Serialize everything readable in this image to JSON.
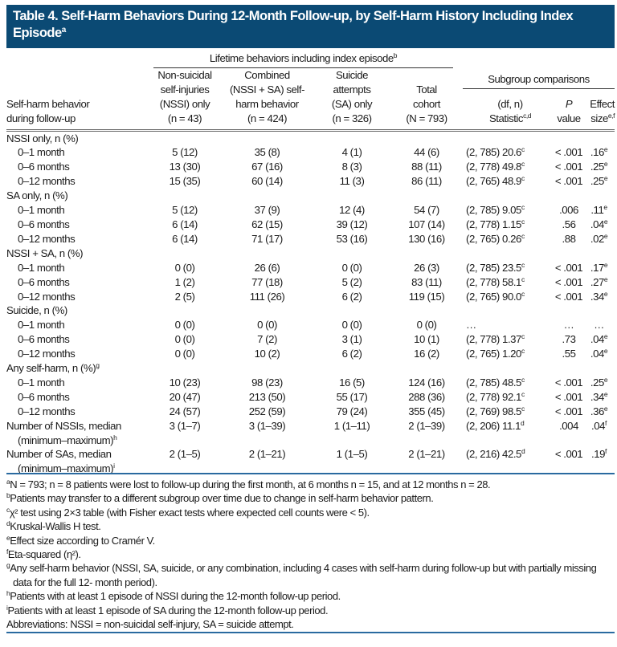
{
  "title": {
    "text": "Table 4. Self-Harm Behaviors During 12-Month Follow-up, by Self-Harm History Including Index Episode",
    "sup": "a"
  },
  "header": {
    "span_label": "Lifetime behaviors including index episode",
    "span_sup": "b",
    "subgroup_label": "Subgroup comparisons",
    "row_label_1": "Self-harm behavior",
    "row_label_2": "during follow-up",
    "col1": [
      "Non-suicidal",
      "self-injuries",
      "(NSSI) only",
      "(n = 43)"
    ],
    "col2": [
      "Combined",
      "(NSSI + SA) self-",
      "harm behavior",
      "(n = 424)"
    ],
    "col3": [
      "Suicide",
      "attempts",
      "(SA) only",
      "(n = 326)"
    ],
    "col4": [
      "Total",
      "cohort",
      "(N = 793)"
    ],
    "stat_1": "(df, n)",
    "stat_2": "Statistic",
    "stat_sup": "c,d",
    "p_1": "P",
    "p_2": "value",
    "eff_1": "Effect",
    "eff_2": "size",
    "eff_sup": "e,f"
  },
  "groups": [
    {
      "label": "NSSI only, n (%)",
      "sup": "",
      "rows": [
        {
          "label": "0–1 month",
          "v": [
            "5 (12)",
            "35 (8)",
            "4 (1)",
            "44 (6)"
          ],
          "stat": "(2, 785) 20.6",
          "ss": "c",
          "p": "< .001",
          "eff": ".16",
          "es": "e"
        },
        {
          "label": "0–6 months",
          "v": [
            "13 (30)",
            "67 (16)",
            "8 (3)",
            "88 (11)"
          ],
          "stat": "(2, 778) 49.8",
          "ss": "c",
          "p": "< .001",
          "eff": ".25",
          "es": "e"
        },
        {
          "label": "0–12 months",
          "v": [
            "15 (35)",
            "60 (14)",
            "11 (3)",
            "86 (11)"
          ],
          "stat": "(2, 765) 48.9",
          "ss": "c",
          "p": "< .001",
          "eff": ".25",
          "es": "e"
        }
      ]
    },
    {
      "label": "SA only, n (%)",
      "sup": "",
      "rows": [
        {
          "label": "0–1 month",
          "v": [
            "5 (12)",
            "37 (9)",
            "12 (4)",
            "54 (7)"
          ],
          "stat": "(2, 785) 9.05",
          "ss": "c",
          "p": ".006",
          "eff": ".11",
          "es": "e"
        },
        {
          "label": "0–6 months",
          "v": [
            "6 (14)",
            "62 (15)",
            "39 (12)",
            "107 (14)"
          ],
          "stat": "(2, 778) 1.15",
          "ss": "c",
          "p": ".56",
          "eff": ".04",
          "es": "e"
        },
        {
          "label": "0–12 months",
          "v": [
            "6 (14)",
            "71 (17)",
            "53 (16)",
            "130 (16)"
          ],
          "stat": "(2, 765) 0.26",
          "ss": "c",
          "p": ".88",
          "eff": ".02",
          "es": "e"
        }
      ]
    },
    {
      "label": "NSSI + SA, n (%)",
      "sup": "",
      "rows": [
        {
          "label": "0–1 month",
          "v": [
            "0 (0)",
            "26 (6)",
            "0 (0)",
            "26 (3)"
          ],
          "stat": "(2, 785) 23.5",
          "ss": "c",
          "p": "< .001",
          "eff": ".17",
          "es": "e"
        },
        {
          "label": "0–6 months",
          "v": [
            "1 (2)",
            "77 (18)",
            "5 (2)",
            "83 (11)"
          ],
          "stat": "(2, 778) 58.1",
          "ss": "c",
          "p": "< .001",
          "eff": ".27",
          "es": "e"
        },
        {
          "label": "0–12 months",
          "v": [
            "2 (5)",
            "111 (26)",
            "6 (2)",
            "119 (15)"
          ],
          "stat": "(2, 765) 90.0",
          "ss": "c",
          "p": "< .001",
          "eff": ".34",
          "es": "e"
        }
      ]
    },
    {
      "label": "Suicide, n (%)",
      "sup": "",
      "rows": [
        {
          "label": "0–1 month",
          "v": [
            "0 (0)",
            "0 (0)",
            "0 (0)",
            "0 (0)"
          ],
          "stat": "…",
          "ss": "",
          "p": "…",
          "eff": "…",
          "es": ""
        },
        {
          "label": "0–6 months",
          "v": [
            "0 (0)",
            "7 (2)",
            "3 (1)",
            "10 (1)"
          ],
          "stat": "(2, 778) 1.37",
          "ss": "c",
          "p": ".73",
          "eff": ".04",
          "es": "e"
        },
        {
          "label": "0–12 months",
          "v": [
            "0 (0)",
            "10 (2)",
            "6 (2)",
            "16 (2)"
          ],
          "stat": "(2, 765) 1.20",
          "ss": "c",
          "p": ".55",
          "eff": ".04",
          "es": "e"
        }
      ]
    },
    {
      "label": "Any self-harm, n (%)",
      "sup": "g",
      "rows": [
        {
          "label": "0–1 month",
          "v": [
            "10 (23)",
            "98 (23)",
            "16 (5)",
            "124 (16)"
          ],
          "stat": "(2, 785) 48.5",
          "ss": "c",
          "p": "< .001",
          "eff": ".25",
          "es": "e"
        },
        {
          "label": "0–6 months",
          "v": [
            "20 (47)",
            "213 (50)",
            "55 (17)",
            "288 (36)"
          ],
          "stat": "(2, 778) 92.1",
          "ss": "c",
          "p": "< .001",
          "eff": ".34",
          "es": "e"
        },
        {
          "label": "0–12 months",
          "v": [
            "24 (57)",
            "252 (59)",
            "79 (24)",
            "355 (45)"
          ],
          "stat": "(2, 769) 98.5",
          "ss": "c",
          "p": "< .001",
          "eff": ".36",
          "es": "e"
        }
      ]
    }
  ],
  "summary_rows": [
    {
      "label": "Number of NSSIs, median",
      "label2": "(minimum–maximum)",
      "sup": "h",
      "v": [
        "3 (1–7)",
        "3 (1–39)",
        "1 (1–11)",
        "2 (1–39)"
      ],
      "stat": "(2, 206) 11.1",
      "ss": "d",
      "p": ".004",
      "eff": ".04",
      "es": "f"
    },
    {
      "label": "Number of SAs, median",
      "label2": "(minimum–maximum)",
      "sup": "i",
      "v": [
        "2 (1–5)",
        "2 (1–21)",
        "1 (1–5)",
        "2 (1–21)"
      ],
      "stat": "(2, 216) 42.5",
      "ss": "d",
      "p": "< .001",
      "eff": ".19",
      "es": "f"
    }
  ],
  "footnotes": [
    {
      "sup": "a",
      "text": "N = 793; n = 8 patients were lost to follow-up during the first month, at 6 months n = 15, and at 12 months n = 28."
    },
    {
      "sup": "b",
      "text": "Patients may transfer to a different subgroup over time due to change in self-harm behavior pattern."
    },
    {
      "sup": "c",
      "text": "χ² test using 2×3 table (with Fisher exact tests where expected cell counts were < 5)."
    },
    {
      "sup": "d",
      "text": "Kruskal-Wallis H test."
    },
    {
      "sup": "e",
      "text": "Effect size according to Cramér V."
    },
    {
      "sup": "f",
      "text": "Eta-squared (η²)."
    },
    {
      "sup": "g",
      "text": "Any self-harm behavior (NSSI, SA, suicide, or any combination, including 4 cases with self-harm during follow-up but with partially missing data for the full 12- month period)."
    },
    {
      "sup": "h",
      "text": "Patients with at least 1 episode of NSSI during the 12-month follow-up period."
    },
    {
      "sup": "i",
      "text": "Patients with at least 1 episode of SA during the 12-month follow-up period."
    },
    {
      "sup": "",
      "text": "Abbreviations: NSSI = non-suicidal self-injury, SA = suicide attempt."
    }
  ]
}
